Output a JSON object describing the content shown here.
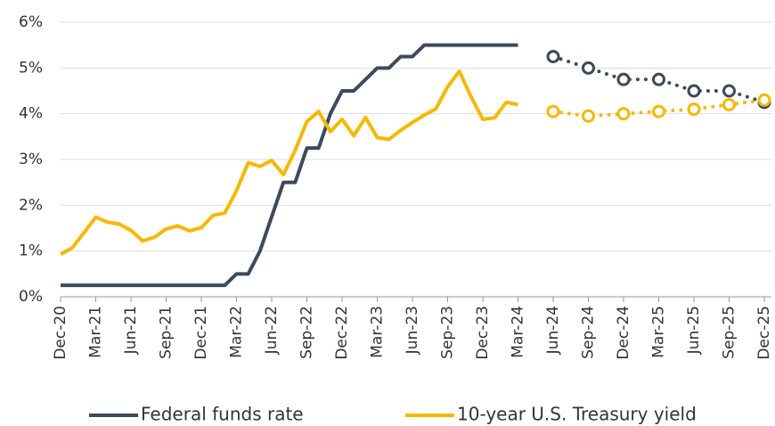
{
  "chart_data": {
    "type": "line",
    "categories": [
      "Dec-20",
      null,
      null,
      "Mar-21",
      null,
      null,
      "Jun-21",
      null,
      null,
      "Sep-21",
      null,
      null,
      "Dec-21",
      null,
      null,
      "Mar-22",
      null,
      null,
      "Jun-22",
      null,
      null,
      "Sep-22",
      null,
      null,
      "Dec-22",
      null,
      null,
      "Mar-23",
      null,
      null,
      "Jun-23",
      null,
      null,
      "Sep-23",
      null,
      null,
      "Dec-23",
      null,
      null,
      "Mar-24",
      null,
      null,
      "Jun-24",
      null,
      null,
      "Sep-24",
      null,
      null,
      "Dec-24",
      null,
      null,
      "Mar-25",
      null,
      null,
      "Jun-25",
      null,
      null,
      "Sep-25",
      null,
      null,
      "Dec-25"
    ],
    "projection_x": [
      "Jun-24",
      "Sep-24",
      "Dec-24",
      "Mar-25",
      "Jun-25",
      "Sep-25",
      "Dec-25"
    ],
    "series": [
      {
        "name": "Federal funds rate",
        "color": "#3d4a5c",
        "values": [
          0.25,
          0.25,
          0.25,
          0.25,
          0.25,
          0.25,
          0.25,
          0.25,
          0.25,
          0.25,
          0.25,
          0.25,
          0.25,
          0.25,
          0.25,
          0.5,
          0.5,
          1.0,
          1.75,
          2.5,
          2.5,
          3.25,
          3.25,
          4.0,
          4.5,
          4.5,
          4.75,
          5.0,
          5.0,
          5.25,
          5.25,
          5.5,
          5.5,
          5.5,
          5.5,
          5.5,
          5.5,
          5.5,
          5.5,
          5.5,
          null,
          null,
          null,
          null,
          null,
          null,
          null,
          null,
          null,
          null,
          null,
          null,
          null,
          null,
          null,
          null,
          null,
          null,
          null,
          null,
          null
        ],
        "projection": [
          5.25,
          5.0,
          4.75,
          4.75,
          4.5,
          4.5,
          4.25
        ]
      },
      {
        "name": "10-year U.S. Treasury yield",
        "color": "#f5b800",
        "values": [
          0.93,
          1.07,
          1.4,
          1.74,
          1.63,
          1.59,
          1.45,
          1.22,
          1.3,
          1.48,
          1.55,
          1.44,
          1.51,
          1.78,
          1.83,
          2.32,
          2.93,
          2.85,
          2.98,
          2.67,
          3.2,
          3.83,
          4.05,
          3.61,
          3.88,
          3.52,
          3.92,
          3.48,
          3.44,
          3.64,
          3.81,
          3.97,
          4.11,
          4.59,
          4.93,
          4.37,
          3.88,
          3.91,
          4.25,
          4.2,
          null,
          null,
          null,
          null,
          null,
          null,
          null,
          null,
          null,
          null,
          null,
          null,
          null,
          null,
          null,
          null,
          null,
          null,
          null,
          null,
          null
        ],
        "projection": [
          4.05,
          3.95,
          4.0,
          4.05,
          4.1,
          4.2,
          4.3
        ]
      }
    ],
    "ylim": [
      0,
      6
    ],
    "yticks": [
      {
        "value": 0,
        "label": "0%"
      },
      {
        "value": 1,
        "label": "1%"
      },
      {
        "value": 2,
        "label": "2%"
      },
      {
        "value": 3,
        "label": "3%"
      },
      {
        "value": 4,
        "label": "4%"
      },
      {
        "value": 5,
        "label": "5%"
      },
      {
        "value": 6,
        "label": "6%"
      }
    ],
    "grid": true
  }
}
